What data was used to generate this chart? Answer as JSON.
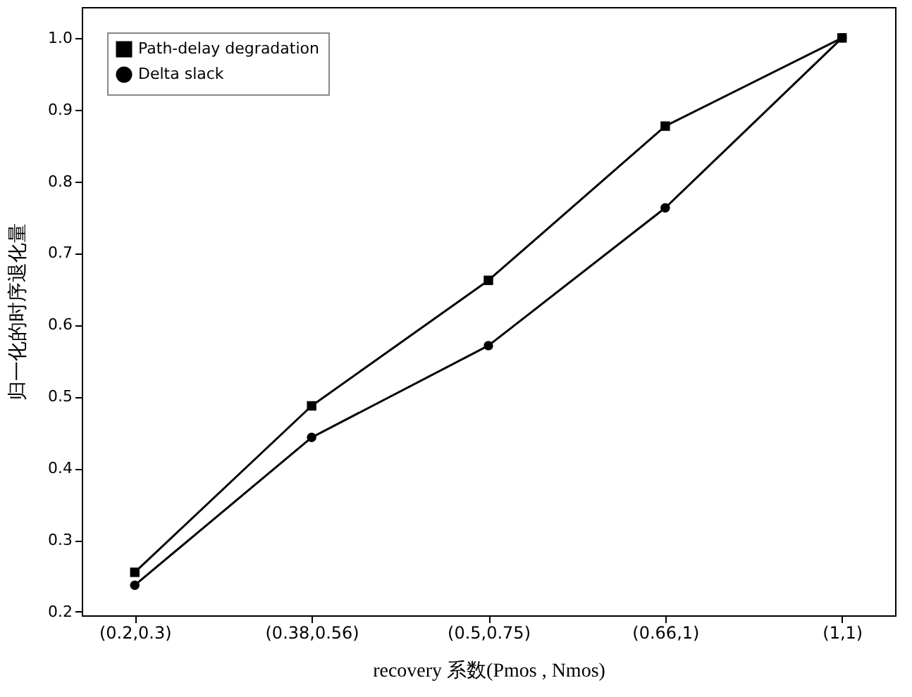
{
  "chart_data": {
    "type": "line",
    "categories": [
      "(0.2,0.3)",
      "(0.38,0.56)",
      "(0.5,0.75)",
      "(0.66,1)",
      "(1,1)"
    ],
    "series": [
      {
        "name": "Path-delay degradation",
        "color": "#000000",
        "marker": "square",
        "values": [
          0.255,
          0.487,
          0.662,
          0.877,
          1.0
        ]
      },
      {
        "name": "Delta slack",
        "color": "#000000",
        "marker": "circle",
        "values": [
          0.237,
          0.443,
          0.571,
          0.763,
          1.0
        ]
      }
    ],
    "xlabel": "recovery 系数(Pmos , Nmos)",
    "ylabel": "归一化的时序退化量",
    "ylim": [
      0.195,
      1.043
    ],
    "yticks": [
      0.2,
      0.3,
      0.4,
      0.5,
      0.6,
      0.7,
      0.8,
      0.9,
      {
        "value": 1.0,
        "label": "1.0"
      }
    ],
    "grid": false,
    "legend": "top left",
    "line_style": "solid"
  }
}
